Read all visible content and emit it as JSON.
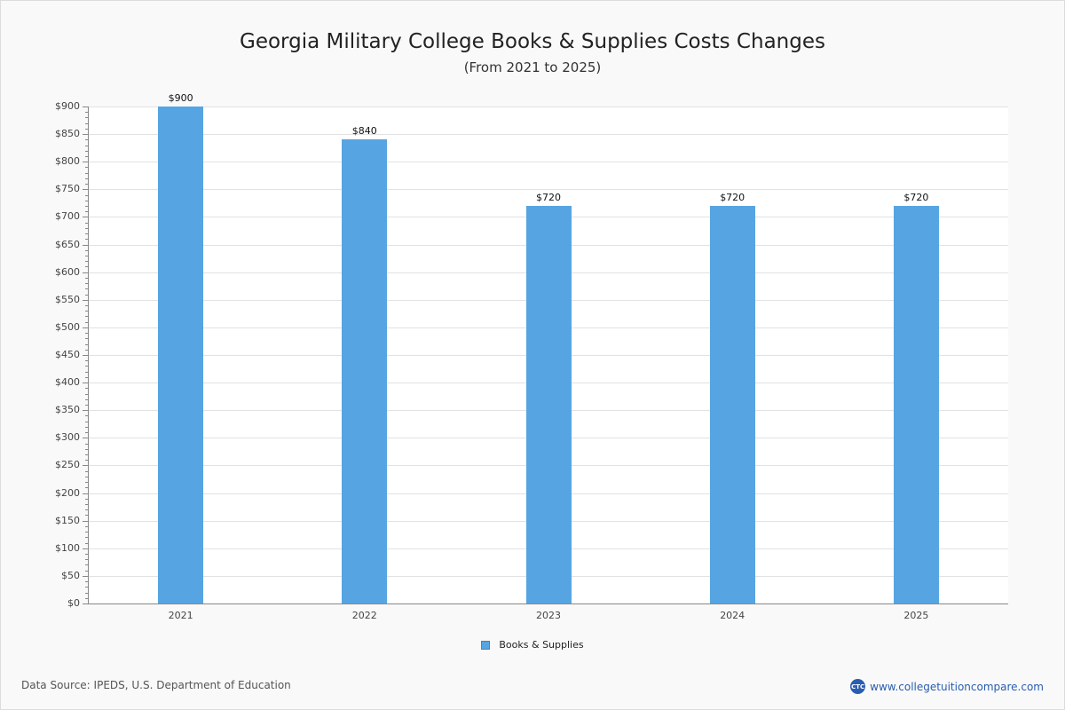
{
  "header": {
    "title": "Georgia Military College Books & Supplies Costs Changes",
    "subtitle": "(From 2021 to 2025)"
  },
  "legend": {
    "label": "Books & Supplies",
    "color": "#56a5e2"
  },
  "footer": {
    "source": "Data Source: IPEDS, U.S. Department of Education",
    "brand_logo": "CTC",
    "brand_url": "www.collegetuitioncompare.com"
  },
  "chart_data": {
    "type": "bar",
    "title": "Georgia Military College Books & Supplies Costs Changes",
    "subtitle": "(From 2021 to 2025)",
    "categories": [
      "2021",
      "2022",
      "2023",
      "2024",
      "2025"
    ],
    "series": [
      {
        "name": "Books & Supplies",
        "values": [
          900,
          840,
          720,
          720,
          720
        ],
        "color": "#56a5e2"
      }
    ],
    "value_labels": [
      "$900",
      "$840",
      "$720",
      "$720",
      "$720"
    ],
    "xlabel": "",
    "ylabel": "",
    "ylim": [
      0,
      900
    ],
    "yticks": [
      "$0",
      "$50",
      "$100",
      "$150",
      "$200",
      "$250",
      "$300",
      "$350",
      "$400",
      "$450",
      "$500",
      "$550",
      "$600",
      "$650",
      "$700",
      "$750",
      "$800",
      "$850",
      "$900"
    ],
    "grid": true,
    "legend_position": "bottom"
  }
}
